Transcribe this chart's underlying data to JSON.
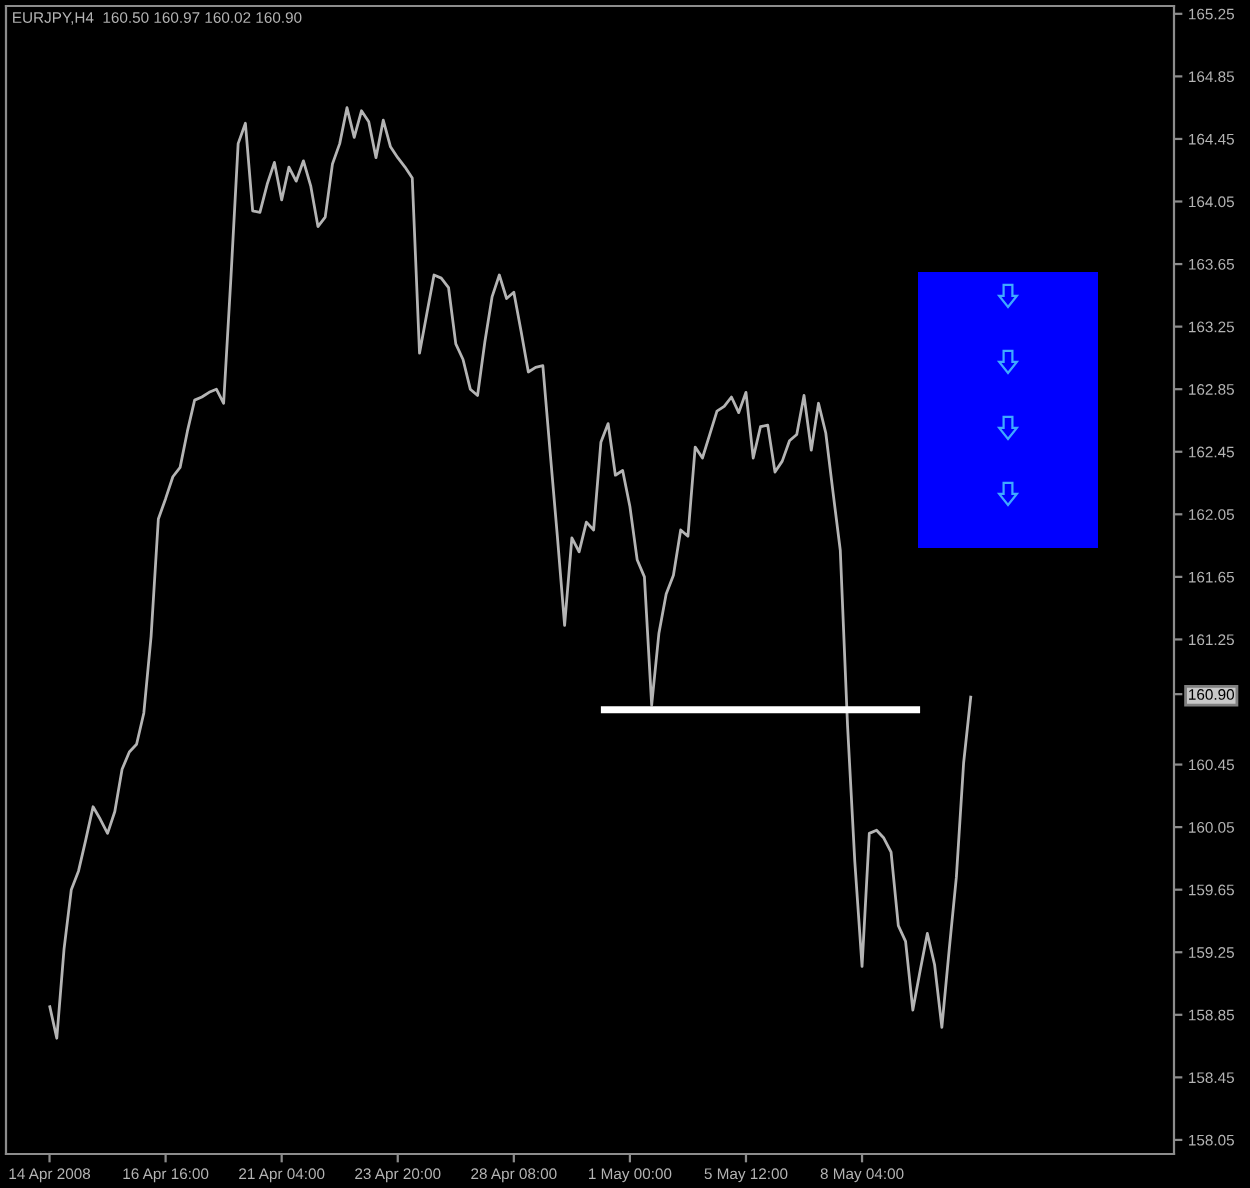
{
  "chart_data": {
    "type": "line",
    "title": "EURJPY,H4  160.50 160.97 160.02 160.90",
    "categories": [
      "14 Apr 2008",
      null,
      null,
      null,
      null,
      null,
      null,
      null,
      null,
      null,
      null,
      null,
      null,
      null,
      null,
      null,
      "16 Apr 16:00",
      null,
      null,
      null,
      null,
      null,
      null,
      null,
      null,
      null,
      null,
      null,
      null,
      null,
      null,
      null,
      "21 Apr 04:00",
      null,
      null,
      null,
      null,
      null,
      null,
      null,
      null,
      null,
      null,
      null,
      null,
      null,
      null,
      null,
      "23 Apr 20:00",
      null,
      null,
      null,
      null,
      null,
      null,
      null,
      null,
      null,
      null,
      null,
      null,
      null,
      null,
      null,
      "28 Apr 08:00",
      null,
      null,
      null,
      null,
      null,
      null,
      null,
      null,
      null,
      null,
      null,
      null,
      null,
      null,
      null,
      "1 May 00:00",
      null,
      null,
      null,
      null,
      null,
      null,
      null,
      null,
      null,
      null,
      null,
      null,
      null,
      null,
      null,
      "5 May 12:00",
      null,
      null,
      null,
      null,
      null,
      null,
      null,
      null,
      null,
      null,
      null,
      null,
      null,
      null,
      null,
      "8 May 04:00",
      null,
      null,
      null,
      null,
      null,
      null,
      null,
      null,
      null,
      null,
      null,
      null,
      null,
      null,
      null,
      null,
      null,
      null,
      null,
      null,
      null,
      null,
      null,
      null,
      null,
      null,
      null,
      null,
      null,
      null,
      null,
      null,
      null,
      null,
      null,
      null,
      null,
      null,
      null,
      null,
      null,
      null,
      null,
      null,
      null,
      null,
      null,
      null
    ],
    "ylim": [
      157.96,
      165.3
    ],
    "yticks": [
      165.25,
      164.85,
      164.45,
      164.05,
      163.65,
      163.25,
      162.85,
      162.45,
      162.05,
      161.65,
      161.25,
      {
        "value": 160.9,
        "label": "160.90"
      },
      160.45,
      160.05,
      159.65,
      159.25,
      158.85,
      158.45,
      158.05
    ],
    "grid": false,
    "legend": false,
    "series": [
      {
        "color": "#b4b4b4",
        "values": [
          158.91,
          158.7,
          159.27,
          159.65,
          159.77,
          159.97,
          160.18,
          160.1,
          160.01,
          160.15,
          160.42,
          160.53,
          160.58,
          160.78,
          161.27,
          162.02,
          162.15,
          162.29,
          162.35,
          162.58,
          162.78,
          162.8,
          162.83,
          162.85,
          162.76,
          163.56,
          164.42,
          164.55,
          163.99,
          163.98,
          164.16,
          164.3,
          164.06,
          164.27,
          164.18,
          164.31,
          164.15,
          163.89,
          163.95,
          164.29,
          164.42,
          164.65,
          164.46,
          164.63,
          164.56,
          164.33,
          164.57,
          164.4,
          164.33,
          164.27,
          164.2,
          163.08,
          163.33,
          163.58,
          163.56,
          163.5,
          163.14,
          163.04,
          162.85,
          162.81,
          163.15,
          163.44,
          163.58,
          163.43,
          163.47,
          163.22,
          162.96,
          162.99,
          163.0,
          162.45,
          161.91,
          161.34,
          161.9,
          161.81,
          162.0,
          161.95,
          162.51,
          162.63,
          162.3,
          162.33,
          162.1,
          161.76,
          161.65,
          160.83,
          161.29,
          161.54,
          161.66,
          161.95,
          161.91,
          162.48,
          162.41,
          162.56,
          162.71,
          162.74,
          162.8,
          162.7,
          162.83,
          162.41,
          162.61,
          162.62,
          162.32,
          162.39,
          162.52,
          162.56,
          162.81,
          162.46,
          162.76,
          162.57,
          162.19,
          161.82,
          160.7,
          159.83,
          159.16,
          160.01,
          160.03,
          159.98,
          159.89,
          159.42,
          159.32,
          158.88,
          159.13,
          159.37,
          159.17,
          158.77,
          159.26,
          159.73,
          160.46,
          160.89,
          null,
          null,
          null,
          null,
          null,
          null,
          null,
          null,
          null,
          null,
          null,
          null,
          null,
          null,
          null,
          null,
          null,
          null,
          null,
          null,
          null,
          null,
          null,
          null,
          null,
          null,
          null,
          null,
          null,
          null,
          null,
          null,
          null
        ]
      },
      {
        "color": "#ffffff",
        "values": [
          null,
          null,
          null,
          null,
          null,
          null,
          null,
          null,
          null,
          null,
          null,
          null,
          null,
          null,
          null,
          null,
          null,
          null,
          null,
          null,
          null,
          null,
          null,
          null,
          null,
          null,
          null,
          null,
          null,
          null,
          null,
          null,
          null,
          null,
          null,
          null,
          null,
          null,
          null,
          null,
          null,
          null,
          null,
          null,
          null,
          null,
          null,
          null,
          null,
          null,
          null,
          null,
          null,
          null,
          null,
          null,
          null,
          null,
          null,
          null,
          null,
          null,
          null,
          null,
          null,
          null,
          null,
          null,
          null,
          null,
          null,
          null,
          null,
          null,
          null,
          null,
          160.8,
          160.8,
          160.8,
          160.8,
          160.8,
          160.8,
          160.8,
          160.8,
          160.8,
          160.8,
          160.8,
          160.8,
          160.8,
          160.8,
          160.8,
          160.8,
          160.8,
          160.8,
          160.8,
          160.8,
          160.8,
          160.8,
          160.8,
          160.8,
          160.8,
          160.8,
          160.8,
          160.8,
          160.8,
          160.8,
          160.8,
          160.8,
          160.8,
          160.8,
          160.8,
          160.8,
          160.8,
          160.8,
          160.8,
          160.8,
          160.8,
          160.8,
          160.8,
          160.8,
          160.8,
          null,
          null,
          null,
          null,
          null,
          null,
          null,
          null,
          null,
          null,
          null,
          null,
          null,
          null,
          null,
          null,
          null,
          null,
          null,
          null,
          null,
          null,
          null,
          null,
          null,
          null,
          null,
          null,
          null,
          null,
          null,
          null,
          null,
          null,
          null,
          null,
          null,
          null,
          null,
          null
        ]
      }
    ]
  }
}
